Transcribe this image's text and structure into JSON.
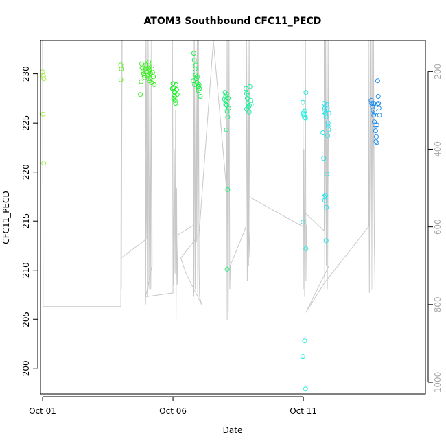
{
  "chart_data": {
    "type": "scatter",
    "title": "ATOM3 Southbound CFC11_PECD",
    "xlabel": "Date",
    "ylabel": "CFC11_PECD",
    "xlim": [
      -0.08,
      14.68
    ],
    "ylim": [
      197.4,
      233.4
    ],
    "x_tick_values": [
      0,
      5,
      10
    ],
    "x_tick_labels": [
      "Oct 01",
      "Oct 06",
      "Oct 11"
    ],
    "y_ticks": [
      200,
      205,
      210,
      215,
      220,
      225,
      230
    ],
    "right_axis": {
      "label_color": "#aaaaaa",
      "ticks": [
        200,
        400,
        600,
        800,
        1000
      ],
      "lim": [
        1030,
        120
      ]
    },
    "grid": false,
    "legend": "none",
    "profile_color": "#c8c8c8",
    "profile_line": [
      [
        0.0,
        120
      ],
      [
        0.02,
        805
      ],
      [
        3.0,
        805
      ],
      [
        3.02,
        120
      ],
      [
        3.05,
        120
      ],
      [
        3.02,
        760
      ],
      [
        3.02,
        680
      ],
      [
        4.0,
        630
      ],
      [
        3.95,
        120
      ],
      [
        3.95,
        800
      ],
      [
        4.0,
        120
      ],
      [
        4.02,
        780
      ],
      [
        4.05,
        120
      ],
      [
        4.08,
        760
      ],
      [
        4.12,
        120
      ],
      [
        4.15,
        760
      ],
      [
        4.18,
        120
      ],
      [
        4.2,
        700
      ],
      [
        3.95,
        780
      ],
      [
        5.0,
        770
      ],
      [
        4.98,
        120
      ],
      [
        5.0,
        520
      ],
      [
        5.02,
        750
      ],
      [
        5.05,
        400
      ],
      [
        5.08,
        720
      ],
      [
        5.1,
        300
      ],
      [
        5.12,
        840
      ],
      [
        5.14,
        500
      ],
      [
        5.16,
        750
      ],
      [
        5.2,
        620
      ],
      [
        5.8,
        595
      ],
      [
        5.78,
        120
      ],
      [
        5.8,
        780
      ],
      [
        5.82,
        120
      ],
      [
        5.85,
        760
      ],
      [
        5.88,
        120
      ],
      [
        5.9,
        640
      ],
      [
        5.93,
        120
      ],
      [
        5.95,
        780
      ],
      [
        5.98,
        120
      ],
      [
        6.0,
        700
      ],
      [
        6.02,
        780
      ],
      [
        6.1,
        800
      ],
      [
        5.5,
        720
      ],
      [
        5.3,
        680
      ],
      [
        6.0,
        620
      ],
      [
        6.55,
        120
      ],
      [
        7.05,
        500
      ],
      [
        7.05,
        120
      ],
      [
        7.08,
        840
      ],
      [
        7.1,
        120
      ],
      [
        7.12,
        820
      ],
      [
        7.15,
        120
      ],
      [
        7.18,
        760
      ],
      [
        7.2,
        700
      ],
      [
        7.8,
        600
      ],
      [
        7.82,
        120
      ],
      [
        7.85,
        740
      ],
      [
        7.88,
        120
      ],
      [
        7.9,
        700
      ],
      [
        7.92,
        120
      ],
      [
        7.95,
        680
      ],
      [
        7.85,
        520
      ],
      [
        10.0,
        600
      ],
      [
        9.98,
        120
      ],
      [
        10.0,
        760
      ],
      [
        10.02,
        400
      ],
      [
        10.05,
        780
      ],
      [
        10.08,
        120
      ],
      [
        10.1,
        740
      ],
      [
        10.12,
        600
      ],
      [
        10.0,
        560
      ],
      [
        10.8,
        610
      ],
      [
        10.8,
        120
      ],
      [
        10.82,
        760
      ],
      [
        10.85,
        120
      ],
      [
        10.88,
        700
      ],
      [
        10.9,
        120
      ],
      [
        10.92,
        760
      ],
      [
        10.95,
        120
      ],
      [
        10.98,
        700
      ],
      [
        10.1,
        820
      ],
      [
        10.8,
        745
      ],
      [
        12.5,
        600
      ],
      [
        12.5,
        120
      ],
      [
        12.53,
        770
      ],
      [
        12.56,
        120
      ],
      [
        12.6,
        760
      ],
      [
        12.63,
        120
      ],
      [
        12.66,
        760
      ],
      [
        12.69,
        120
      ],
      [
        12.72,
        640
      ],
      [
        12.75,
        760
      ]
    ],
    "series": [
      {
        "color": "#9ef23a",
        "points": [
          [
            0.0,
            230.2
          ],
          [
            0.03,
            229.8
          ],
          [
            0.05,
            229.5
          ],
          [
            0.02,
            225.9
          ],
          [
            0.04,
            220.9
          ]
        ]
      },
      {
        "color": "#5ff020",
        "points": [
          [
            3.0,
            230.9
          ],
          [
            3.02,
            230.5
          ],
          [
            3.0,
            229.4
          ]
        ]
      },
      {
        "color": "#37f01e",
        "points": [
          [
            3.8,
            231.0
          ],
          [
            3.82,
            230.6
          ],
          [
            3.85,
            230.3
          ],
          [
            3.88,
            230.0
          ],
          [
            3.9,
            229.8
          ],
          [
            3.92,
            229.6
          ],
          [
            3.95,
            230.5
          ],
          [
            3.97,
            230.9
          ],
          [
            4.0,
            230.2
          ],
          [
            4.02,
            229.9
          ],
          [
            4.05,
            230.6
          ],
          [
            4.07,
            231.2
          ],
          [
            4.1,
            230.4
          ],
          [
            4.12,
            229.5
          ],
          [
            4.15,
            230.0
          ],
          [
            4.18,
            229.1
          ],
          [
            4.2,
            230.5
          ],
          [
            4.22,
            230.1
          ],
          [
            4.25,
            229.7
          ],
          [
            4.28,
            228.9
          ],
          [
            3.75,
            227.9
          ],
          [
            3.78,
            229.2
          ],
          [
            4.08,
            230.8
          ],
          [
            4.1,
            229.3
          ]
        ]
      },
      {
        "color": "#1ef028",
        "points": [
          [
            5.0,
            229.0
          ],
          [
            5.02,
            228.6
          ],
          [
            5.04,
            228.2
          ],
          [
            5.06,
            227.7
          ],
          [
            5.08,
            227.3
          ],
          [
            5.1,
            227.0
          ],
          [
            5.12,
            228.9
          ],
          [
            5.14,
            228.4
          ],
          [
            5.16,
            227.9
          ],
          [
            4.98,
            228.5
          ],
          [
            5.03,
            227.5
          ],
          [
            5.07,
            228.1
          ]
        ]
      },
      {
        "color": "#1ef04a",
        "points": [
          [
            5.8,
            232.1
          ],
          [
            5.82,
            231.4
          ],
          [
            5.85,
            230.5
          ],
          [
            5.87,
            229.9
          ],
          [
            5.9,
            229.5
          ],
          [
            5.92,
            229.1
          ],
          [
            5.95,
            228.7
          ],
          [
            5.97,
            228.3
          ],
          [
            6.0,
            228.9
          ],
          [
            6.02,
            228.5
          ],
          [
            6.05,
            227.7
          ],
          [
            5.78,
            229.3
          ],
          [
            5.83,
            228.9
          ],
          [
            5.88,
            230.9
          ],
          [
            5.93,
            229.7
          ],
          [
            5.98,
            228.7
          ]
        ]
      },
      {
        "color": "#1ef07a",
        "points": [
          [
            7.0,
            228.1
          ],
          [
            7.02,
            227.7
          ],
          [
            7.04,
            227.2
          ],
          [
            7.06,
            226.8
          ],
          [
            7.08,
            226.2
          ],
          [
            7.1,
            225.6
          ],
          [
            7.12,
            227.5
          ],
          [
            7.14,
            226.5
          ],
          [
            6.98,
            227.4
          ],
          [
            7.05,
            224.3
          ],
          [
            7.1,
            218.2
          ],
          [
            7.08,
            210.1
          ],
          [
            7.02,
            226.9
          ],
          [
            7.06,
            227.9
          ]
        ]
      },
      {
        "color": "#1ef09e",
        "points": [
          [
            7.8,
            228.5
          ],
          [
            7.82,
            228.0
          ],
          [
            7.85,
            227.5
          ],
          [
            7.87,
            227.0
          ],
          [
            7.9,
            226.6
          ],
          [
            7.92,
            226.1
          ],
          [
            7.95,
            228.7
          ],
          [
            7.97,
            227.3
          ],
          [
            8.0,
            226.9
          ],
          [
            7.83,
            226.4
          ],
          [
            7.88,
            227.8
          ],
          [
            7.93,
            226.8
          ]
        ]
      },
      {
        "color": "#1ef0e0",
        "points": [
          [
            10.0,
            226.0
          ],
          [
            10.02,
            225.8
          ],
          [
            10.04,
            225.6
          ],
          [
            10.06,
            225.9
          ],
          [
            10.08,
            225.5
          ],
          [
            10.1,
            228.1
          ],
          [
            9.98,
            227.1
          ],
          [
            10.05,
            226.2
          ],
          [
            9.99,
            214.9
          ],
          [
            10.1,
            212.2
          ],
          [
            10.05,
            202.8
          ],
          [
            9.98,
            201.2
          ],
          [
            10.08,
            197.9
          ]
        ]
      },
      {
        "color": "#1ee6f0",
        "points": [
          [
            10.8,
            227.0
          ],
          [
            10.82,
            226.5
          ],
          [
            10.85,
            226.0
          ],
          [
            10.87,
            225.6
          ],
          [
            10.9,
            226.9
          ],
          [
            10.92,
            226.5
          ],
          [
            10.95,
            225.0
          ],
          [
            10.97,
            224.3
          ],
          [
            10.75,
            224.0
          ],
          [
            10.78,
            221.4
          ],
          [
            10.8,
            217.5
          ],
          [
            10.82,
            217.1
          ],
          [
            10.85,
            217.6
          ],
          [
            10.88,
            216.4
          ],
          [
            10.9,
            219.8
          ],
          [
            10.93,
            223.7
          ],
          [
            10.95,
            224.7
          ],
          [
            10.98,
            226.0
          ],
          [
            10.87,
            213.0
          ],
          [
            10.8,
            226.1
          ]
        ]
      },
      {
        "color": "#1e8ef0",
        "points": [
          [
            12.6,
            227.3
          ],
          [
            12.62,
            227.0
          ],
          [
            12.65,
            226.7
          ],
          [
            12.67,
            226.3
          ],
          [
            12.7,
            225.8
          ],
          [
            12.72,
            225.1
          ],
          [
            12.75,
            224.8
          ],
          [
            12.77,
            224.2
          ],
          [
            12.8,
            223.6
          ],
          [
            12.82,
            223.0
          ],
          [
            12.85,
            226.9
          ],
          [
            12.87,
            227.7
          ],
          [
            12.9,
            226.5
          ],
          [
            12.92,
            225.8
          ],
          [
            12.85,
            229.3
          ],
          [
            12.7,
            227.0
          ],
          [
            12.75,
            226.1
          ],
          [
            12.78,
            223.1
          ],
          [
            12.82,
            224.8
          ],
          [
            12.88,
            227.0
          ]
        ]
      }
    ]
  }
}
